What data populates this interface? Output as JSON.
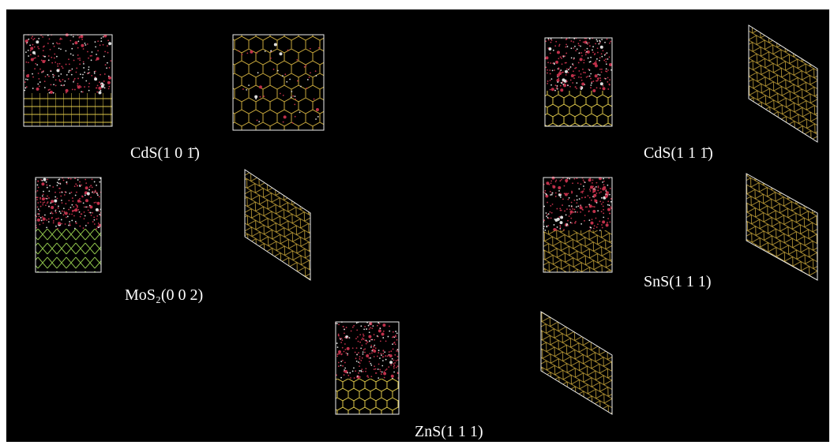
{
  "figure": {
    "labels": [
      "CdS(1 0 1̄)",
      "CdS(1 1 1̄)",
      "MoS₂(0 0 2)",
      "SnS(1 1 1)",
      "ZnS(1 1 1)"
    ]
  }
}
